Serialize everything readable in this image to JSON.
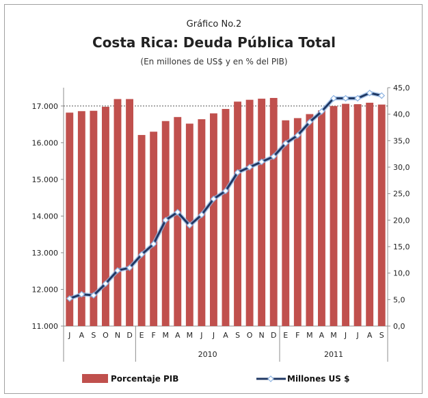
{
  "chart_data": {
    "type": "bar+line",
    "supertitle": "Gráfico No.2",
    "title": "Costa Rica: Deuda Pública Total",
    "subtitle": "(En millones de US$ y en % del PIB)",
    "categories": [
      "J",
      "A",
      "S",
      "O",
      "N",
      "D",
      "E",
      "F",
      "M",
      "A",
      "M",
      "J",
      "J",
      "A",
      "S",
      "O",
      "N",
      "D",
      "E",
      "F",
      "M",
      "A",
      "M",
      "J",
      "J",
      "A",
      "S"
    ],
    "year_groups": [
      {
        "label": "",
        "start": 0,
        "end": 5
      },
      {
        "label": "2010",
        "start": 6,
        "end": 17
      },
      {
        "label": "2011",
        "start": 18,
        "end": 26
      }
    ],
    "y_left": {
      "min": 11000,
      "max": 17500,
      "ticks": [
        "11.000",
        "12.000",
        "13.000",
        "14.000",
        "15.000",
        "16.000",
        "17.000"
      ]
    },
    "y_right": {
      "min": 0,
      "max": 45,
      "ticks": [
        "0,0",
        "5,0",
        "10,0",
        "15,0",
        "20,0",
        "25,0",
        "30,0",
        "35,0",
        "40,0",
        "45,0"
      ]
    },
    "series": [
      {
        "name": "Porcentaje PIB",
        "axis": "left",
        "type": "bar",
        "color": "#c0504d",
        "values": [
          16820,
          16860,
          16870,
          16980,
          17190,
          17190,
          16210,
          16300,
          16590,
          16700,
          16520,
          16640,
          16800,
          16920,
          17120,
          17170,
          17200,
          17220,
          16610,
          16670,
          16780,
          16880,
          17000,
          17060,
          17050,
          17090,
          17040
        ]
      },
      {
        "name": "Millones US $",
        "axis": "right",
        "type": "line",
        "color": "#1f3864",
        "values": [
          5.2,
          6.0,
          5.8,
          8.0,
          10.5,
          11.0,
          13.5,
          15.5,
          20.0,
          21.5,
          19.0,
          21.0,
          24.0,
          25.5,
          29.0,
          30.0,
          31.0,
          32.0,
          34.5,
          36.0,
          38.5,
          40.5,
          43.0,
          43.0,
          43.0,
          44.0,
          43.5
        ]
      }
    ],
    "legend": {
      "position": "bottom",
      "items": [
        "Porcentaje PIB",
        "Millones US $"
      ]
    },
    "grid": false
  }
}
